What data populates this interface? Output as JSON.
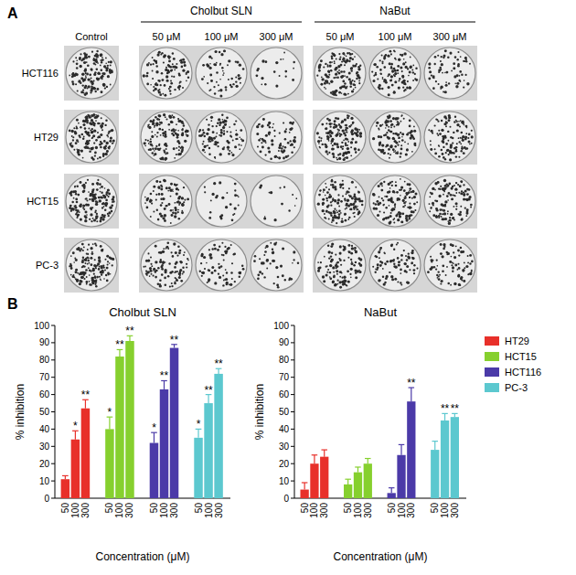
{
  "panel_a": {
    "label": "A",
    "control": "Control",
    "groups": [
      {
        "name": "Cholbut SLN",
        "concentrations": [
          "50 μM",
          "100 μM",
          "300 μM"
        ]
      },
      {
        "name": "NaBut",
        "concentrations": [
          "50 μM",
          "100 μM",
          "300 μM"
        ]
      }
    ],
    "rows": [
      "HCT116",
      "HT29",
      "HCT15",
      "PC-3"
    ]
  },
  "panel_b": {
    "label": "B"
  },
  "chart_data": [
    {
      "type": "bar",
      "title": "Cholbut SLN",
      "x_label": "Concentration (μM)",
      "y_label": "% inhibition",
      "categories": [
        "50",
        "100",
        "300"
      ],
      "ylim": [
        0,
        100
      ],
      "yticks": [
        0,
        10,
        20,
        30,
        40,
        50,
        60,
        70,
        80,
        90,
        100
      ],
      "grid": false,
      "legend": false,
      "series": [
        {
          "name": "HT29",
          "color": "#e8302a",
          "values": [
            11,
            34,
            52
          ],
          "errors": [
            2,
            5,
            5
          ],
          "significance": [
            null,
            "*",
            "**"
          ]
        },
        {
          "name": "HCT15",
          "color": "#86d02e",
          "values": [
            40,
            82,
            91
          ],
          "errors": [
            7,
            4,
            3
          ],
          "significance": [
            "*",
            "**",
            "**"
          ]
        },
        {
          "name": "HCT116",
          "color": "#4b3aa8",
          "values": [
            32,
            63,
            87
          ],
          "errors": [
            6,
            5,
            2
          ],
          "significance": [
            "*",
            "**",
            "**"
          ]
        },
        {
          "name": "PC-3",
          "color": "#5cc8cf",
          "values": [
            35,
            55,
            72
          ],
          "errors": [
            5,
            5,
            3
          ],
          "significance": [
            "*",
            "**",
            "**"
          ]
        }
      ]
    },
    {
      "type": "bar",
      "title": "NaBut",
      "x_label": "Concentration (μM)",
      "y_label": "% inhibition",
      "categories": [
        "50",
        "100",
        "300"
      ],
      "ylim": [
        0,
        100
      ],
      "yticks": [
        0,
        10,
        20,
        30,
        40,
        50,
        60,
        70,
        80,
        90,
        100
      ],
      "grid": false,
      "legend": "right",
      "series": [
        {
          "name": "HT29",
          "color": "#e8302a",
          "values": [
            5,
            20,
            24
          ],
          "errors": [
            4,
            5,
            4
          ],
          "significance": [
            null,
            null,
            null
          ]
        },
        {
          "name": "HCT15",
          "color": "#86d02e",
          "values": [
            8,
            15,
            20
          ],
          "errors": [
            3,
            3,
            3
          ],
          "significance": [
            null,
            null,
            null
          ]
        },
        {
          "name": "HCT116",
          "color": "#4b3aa8",
          "values": [
            3,
            25,
            56
          ],
          "errors": [
            3,
            6,
            8
          ],
          "significance": [
            null,
            null,
            "**"
          ]
        },
        {
          "name": "PC-3",
          "color": "#5cc8cf",
          "values": [
            28,
            45,
            47
          ],
          "errors": [
            5,
            4,
            2
          ],
          "significance": [
            null,
            "**",
            "**"
          ]
        }
      ]
    }
  ]
}
